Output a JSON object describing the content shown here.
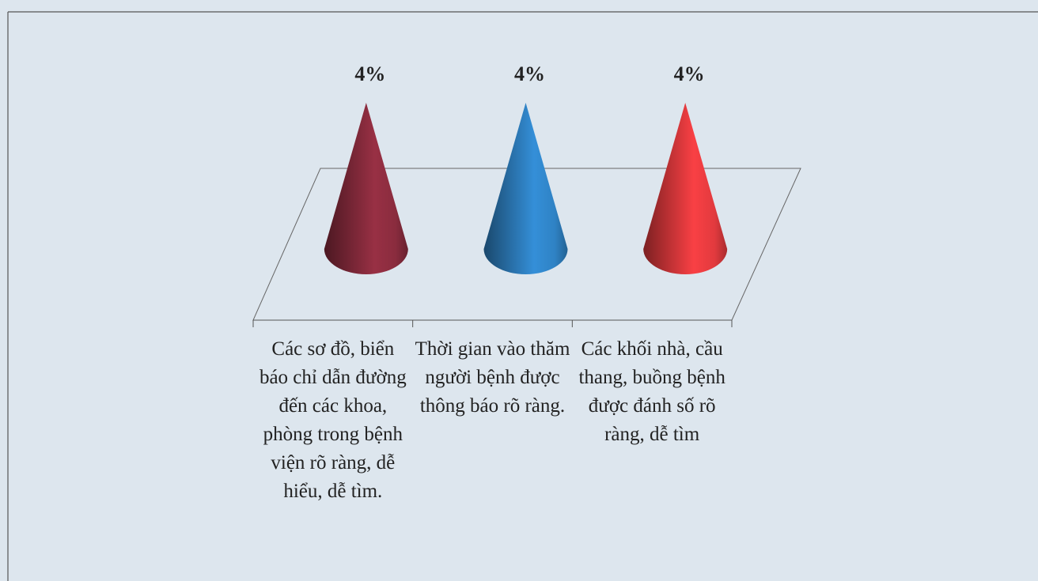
{
  "chart_data": {
    "type": "cone",
    "categories": [
      "Các sơ đồ, biển báo chỉ dẫn đường đến các khoa, phòng trong bệnh viện rõ ràng, dễ hiểu, dễ tìm.",
      "Thời gian vào thăm người bệnh được thông báo rõ ràng.",
      "Các khối nhà, cầu thang, buồng bệnh được đánh số rõ ràng, dễ tìm"
    ],
    "values": [
      4,
      4,
      4
    ],
    "value_labels": [
      "4%",
      "4%",
      "4%"
    ],
    "colors": [
      "#8a2c3e",
      "#2f82c4",
      "#e23a3e"
    ]
  }
}
